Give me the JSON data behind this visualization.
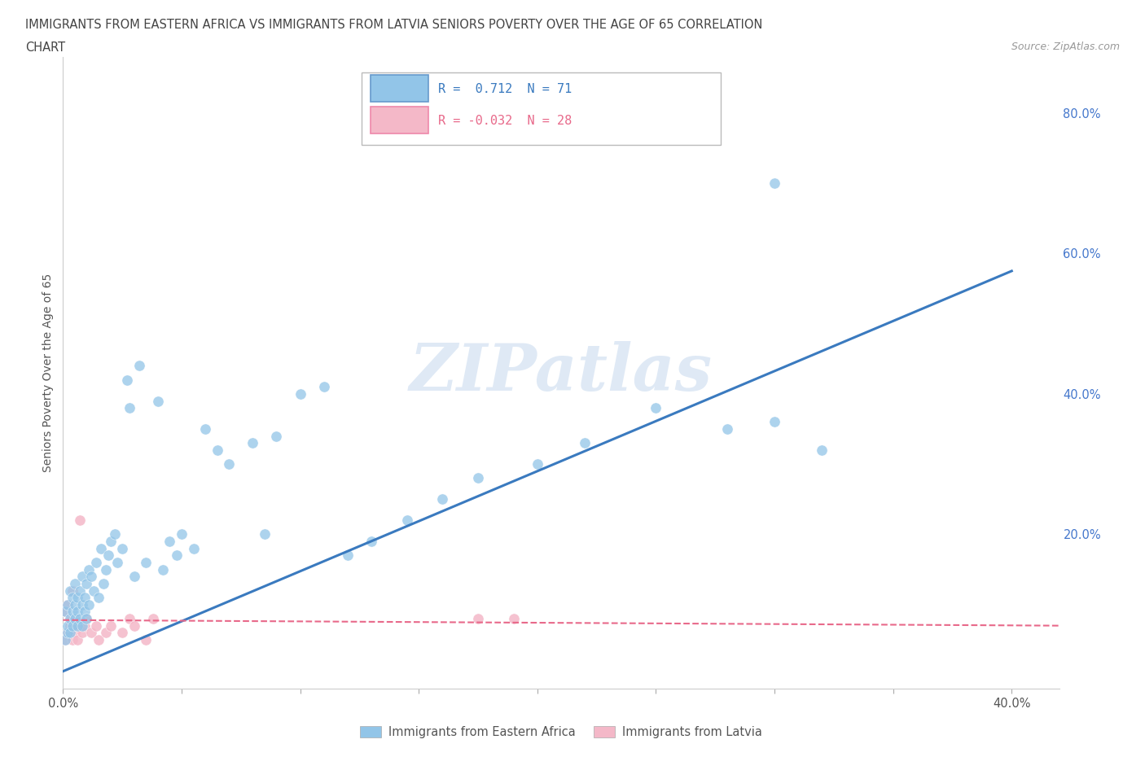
{
  "title_line1": "IMMIGRANTS FROM EASTERN AFRICA VS IMMIGRANTS FROM LATVIA SENIORS POVERTY OVER THE AGE OF 65 CORRELATION",
  "title_line2": "CHART",
  "source": "Source: ZipAtlas.com",
  "ylabel": "Seniors Poverty Over the Age of 65",
  "xlim": [
    0.0,
    0.42
  ],
  "ylim": [
    -0.02,
    0.88
  ],
  "xticks": [
    0.0,
    0.05,
    0.1,
    0.15,
    0.2,
    0.25,
    0.3,
    0.35,
    0.4
  ],
  "xticklabels": [
    "0.0%",
    "",
    "",
    "",
    "",
    "",
    "",
    "",
    "40.0%"
  ],
  "ytick_positions": [
    0.0,
    0.2,
    0.4,
    0.6,
    0.8
  ],
  "yticklabels": [
    "",
    "20.0%",
    "40.0%",
    "60.0%",
    "80.0%"
  ],
  "grid_color": "#cccccc",
  "background_color": "#ffffff",
  "blue_color": "#92c5e8",
  "pink_color": "#f4b8c8",
  "blue_line_color": "#3a7abf",
  "pink_line_color": "#e8698a",
  "watermark": "ZIPatlas",
  "legend_R_blue": "0.712",
  "legend_N_blue": "71",
  "legend_R_pink": "-0.032",
  "legend_N_pink": "28",
  "legend_label_blue": "Immigrants from Eastern Africa",
  "legend_label_pink": "Immigrants from Latvia",
  "blue_scatter_x": [
    0.001,
    0.001,
    0.002,
    0.002,
    0.002,
    0.003,
    0.003,
    0.003,
    0.004,
    0.004,
    0.004,
    0.005,
    0.005,
    0.005,
    0.006,
    0.006,
    0.006,
    0.007,
    0.007,
    0.008,
    0.008,
    0.008,
    0.009,
    0.009,
    0.01,
    0.01,
    0.011,
    0.011,
    0.012,
    0.013,
    0.014,
    0.015,
    0.016,
    0.017,
    0.018,
    0.019,
    0.02,
    0.022,
    0.023,
    0.025,
    0.027,
    0.028,
    0.03,
    0.032,
    0.035,
    0.04,
    0.042,
    0.045,
    0.048,
    0.05,
    0.055,
    0.06,
    0.065,
    0.07,
    0.08,
    0.085,
    0.09,
    0.1,
    0.11,
    0.12,
    0.13,
    0.145,
    0.16,
    0.175,
    0.2,
    0.22,
    0.25,
    0.28,
    0.3,
    0.32,
    0.3
  ],
  "blue_scatter_y": [
    0.05,
    0.09,
    0.06,
    0.1,
    0.07,
    0.08,
    0.12,
    0.06,
    0.09,
    0.11,
    0.07,
    0.1,
    0.08,
    0.13,
    0.09,
    0.11,
    0.07,
    0.12,
    0.08,
    0.1,
    0.14,
    0.07,
    0.11,
    0.09,
    0.13,
    0.08,
    0.15,
    0.1,
    0.14,
    0.12,
    0.16,
    0.11,
    0.18,
    0.13,
    0.15,
    0.17,
    0.19,
    0.2,
    0.16,
    0.18,
    0.42,
    0.38,
    0.14,
    0.44,
    0.16,
    0.39,
    0.15,
    0.19,
    0.17,
    0.2,
    0.18,
    0.35,
    0.32,
    0.3,
    0.33,
    0.2,
    0.34,
    0.4,
    0.41,
    0.17,
    0.19,
    0.22,
    0.25,
    0.28,
    0.3,
    0.33,
    0.38,
    0.35,
    0.36,
    0.32,
    0.7
  ],
  "pink_scatter_x": [
    0.001,
    0.001,
    0.002,
    0.002,
    0.003,
    0.003,
    0.004,
    0.004,
    0.005,
    0.005,
    0.006,
    0.006,
    0.007,
    0.008,
    0.009,
    0.01,
    0.012,
    0.014,
    0.015,
    0.018,
    0.02,
    0.025,
    0.028,
    0.03,
    0.035,
    0.038,
    0.175,
    0.19
  ],
  "pink_scatter_y": [
    0.05,
    0.09,
    0.06,
    0.1,
    0.07,
    0.08,
    0.05,
    0.12,
    0.06,
    0.08,
    0.05,
    0.07,
    0.22,
    0.06,
    0.07,
    0.08,
    0.06,
    0.07,
    0.05,
    0.06,
    0.07,
    0.06,
    0.08,
    0.07,
    0.05,
    0.08,
    0.08,
    0.08
  ],
  "blue_trend_x": [
    0.0,
    0.4
  ],
  "blue_trend_y": [
    0.005,
    0.575
  ],
  "pink_trend_x": [
    0.0,
    0.42
  ],
  "pink_trend_y": [
    0.078,
    0.07
  ]
}
